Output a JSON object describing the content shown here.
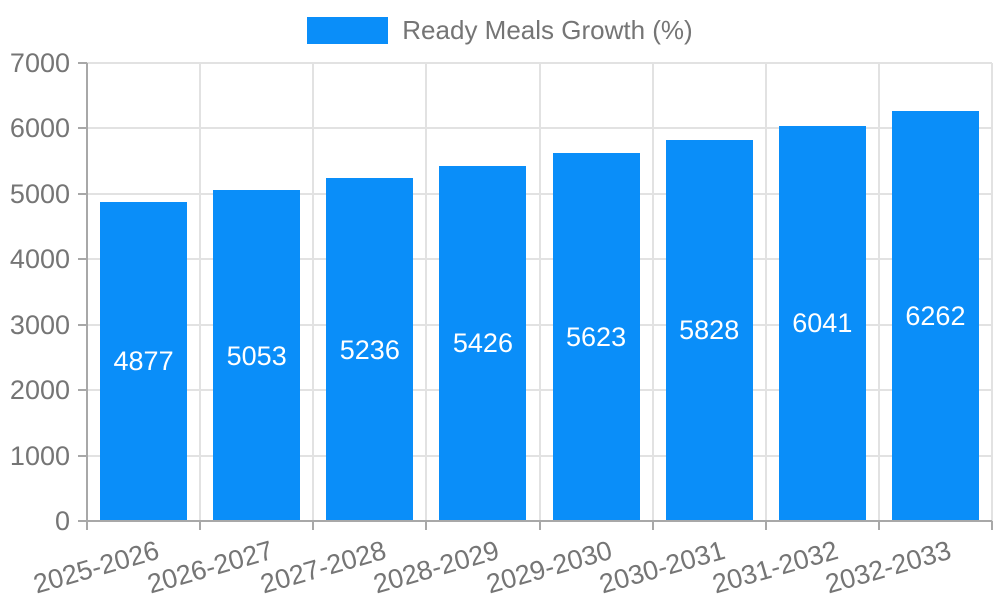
{
  "chart_data": {
    "type": "bar",
    "title": "Ready Meals Growth (%)",
    "legend": {
      "label": "Ready Meals Growth (%)",
      "position": "top-center"
    },
    "categories": [
      "2025-2026",
      "2026-2027",
      "2027-2028",
      "2028-2029",
      "2029-2030",
      "2030-2031",
      "2031-2032",
      "2032-2033"
    ],
    "values": [
      4877,
      5053,
      5236,
      5426,
      5623,
      5828,
      6041,
      6262
    ],
    "xlabel": "",
    "ylabel": "",
    "ylim": [
      0,
      7000
    ],
    "yticks": [
      0,
      1000,
      2000,
      3000,
      4000,
      5000,
      6000,
      7000
    ],
    "grid": true,
    "value_labels_inside_bars": true,
    "colors": {
      "bar": "#0a8ef9",
      "grid": "#e2e2e2",
      "axis": "#a8a8a8",
      "text": "#757575",
      "value_label": "#ffffff"
    }
  }
}
